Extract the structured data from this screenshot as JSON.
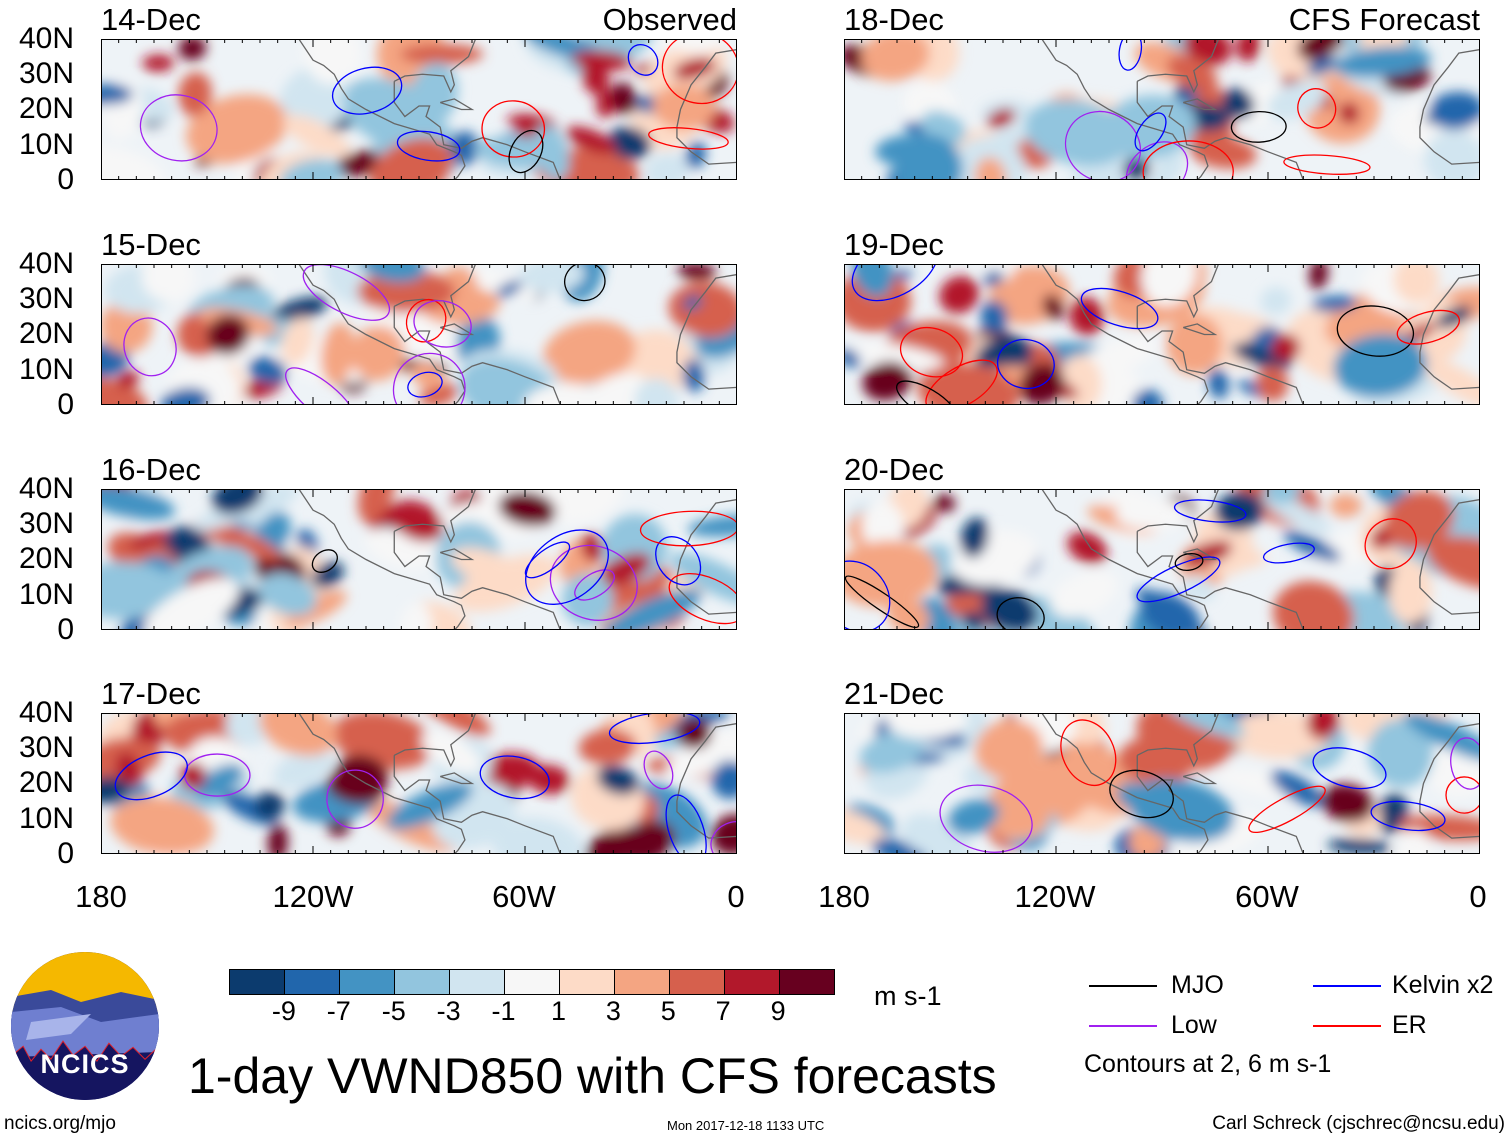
{
  "panels": [
    {
      "date": "14-Dec",
      "tag": "Observed",
      "seed": 11
    },
    {
      "date": "15-Dec",
      "tag": "",
      "seed": 23
    },
    {
      "date": "16-Dec",
      "tag": "",
      "seed": 37
    },
    {
      "date": "17-Dec",
      "tag": "",
      "seed": 41
    },
    {
      "date": "18-Dec",
      "tag": "CFS Forecast",
      "seed": 53
    },
    {
      "date": "19-Dec",
      "tag": "",
      "seed": 67
    },
    {
      "date": "20-Dec",
      "tag": "",
      "seed": 79
    },
    {
      "date": "21-Dec",
      "tag": "",
      "seed": 83
    }
  ],
  "lat_labels": [
    "40N",
    "30N",
    "20N",
    "10N",
    "0"
  ],
  "lon_labels": [
    "180",
    "120W",
    "60W",
    "0"
  ],
  "colorbar": {
    "colors": [
      "#0c3b6e",
      "#2166ac",
      "#4393c3",
      "#92c5de",
      "#d1e5f0",
      "#f7f7f7",
      "#fddbc7",
      "#f4a582",
      "#d6604d",
      "#b2182b",
      "#67001f"
    ],
    "labels": [
      "-9",
      "-7",
      "-5",
      "-3",
      "-1",
      "1",
      "3",
      "5",
      "7",
      "9"
    ],
    "units": "m s-1"
  },
  "legend": {
    "items": [
      {
        "label": "MJO",
        "color": "#000000"
      },
      {
        "label": "Kelvin x2",
        "color": "#0000ff"
      },
      {
        "label": "Low",
        "color": "#a020f0"
      },
      {
        "label": "ER",
        "color": "#ff0000"
      }
    ],
    "note": "Contours at 2, 6 m s-1"
  },
  "logo": {
    "text": "NCICS"
  },
  "title": "1-day VWND850 with CFS forecasts",
  "footer": {
    "left": "ncics.org/mjo",
    "center": "Mon 2017-12-18 1133 UTC",
    "right": "Carl Schreck (cjschrec@ncsu.edu)"
  }
}
